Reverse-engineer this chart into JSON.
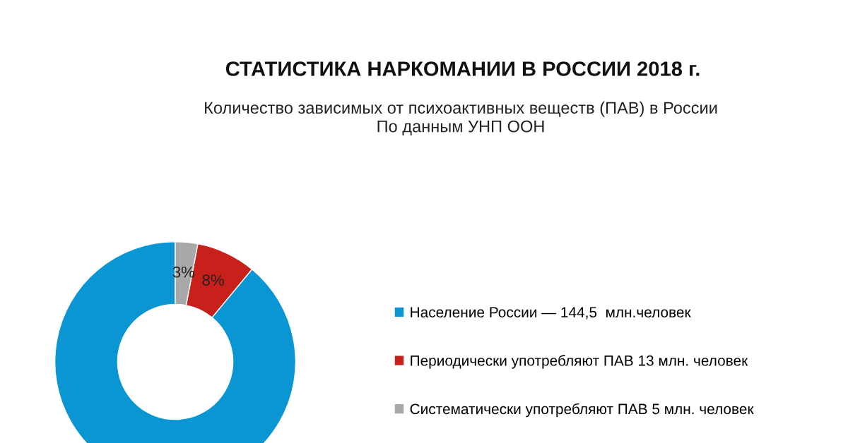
{
  "chart_data": {
    "type": "donut",
    "title": "СТАТИСТИКА НАРКОМАНИИ В РОССИИ 2018 г.",
    "subtitle": "Количество зависимых от психоактивных веществ (ПАВ) в России\nПо данным УНП ООН",
    "categories": [
      "Население России — 144,5  млн.человек",
      "Периодически употребляют ПАВ 13 млн. человек",
      "Систематически употребляют ПАВ 5 млн. человек"
    ],
    "values": [
      89,
      8,
      3
    ],
    "colors": [
      "#0a96d2",
      "#c8201a",
      "#a8a8a8"
    ],
    "value_labels": [
      null,
      "8%",
      "3%"
    ],
    "legend": "right"
  }
}
